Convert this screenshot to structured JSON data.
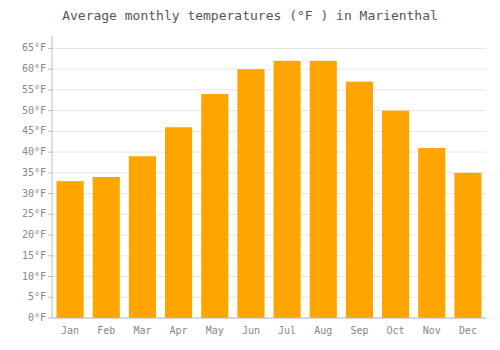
{
  "chart_data": {
    "type": "bar",
    "title": "Average monthly temperatures (°F ) in Marienthal",
    "categories": [
      "Jan",
      "Feb",
      "Mar",
      "Apr",
      "May",
      "Jun",
      "Jul",
      "Aug",
      "Sep",
      "Oct",
      "Nov",
      "Dec"
    ],
    "values": [
      33,
      34,
      39,
      46,
      54,
      60,
      62,
      62,
      57,
      50,
      41,
      35
    ],
    "color": "#FFA500",
    "ylim": [
      0,
      68
    ],
    "yticks": [
      {
        "value": 0,
        "label": "0°F"
      },
      {
        "value": 5,
        "label": "5°F"
      },
      {
        "value": 10,
        "label": "10°F"
      },
      {
        "value": 15,
        "label": "15°F"
      },
      {
        "value": 20,
        "label": "20°F"
      },
      {
        "value": 25,
        "label": "25°F"
      },
      {
        "value": 30,
        "label": "30°F"
      },
      {
        "value": 35,
        "label": "35°F"
      },
      {
        "value": 40,
        "label": "40°F"
      },
      {
        "value": 45,
        "label": "45°F"
      },
      {
        "value": 50,
        "label": "50°F"
      },
      {
        "value": 55,
        "label": "55°F"
      },
      {
        "value": 60,
        "label": "60°F"
      },
      {
        "value": 65,
        "label": "65°F"
      }
    ],
    "grid": true
  }
}
